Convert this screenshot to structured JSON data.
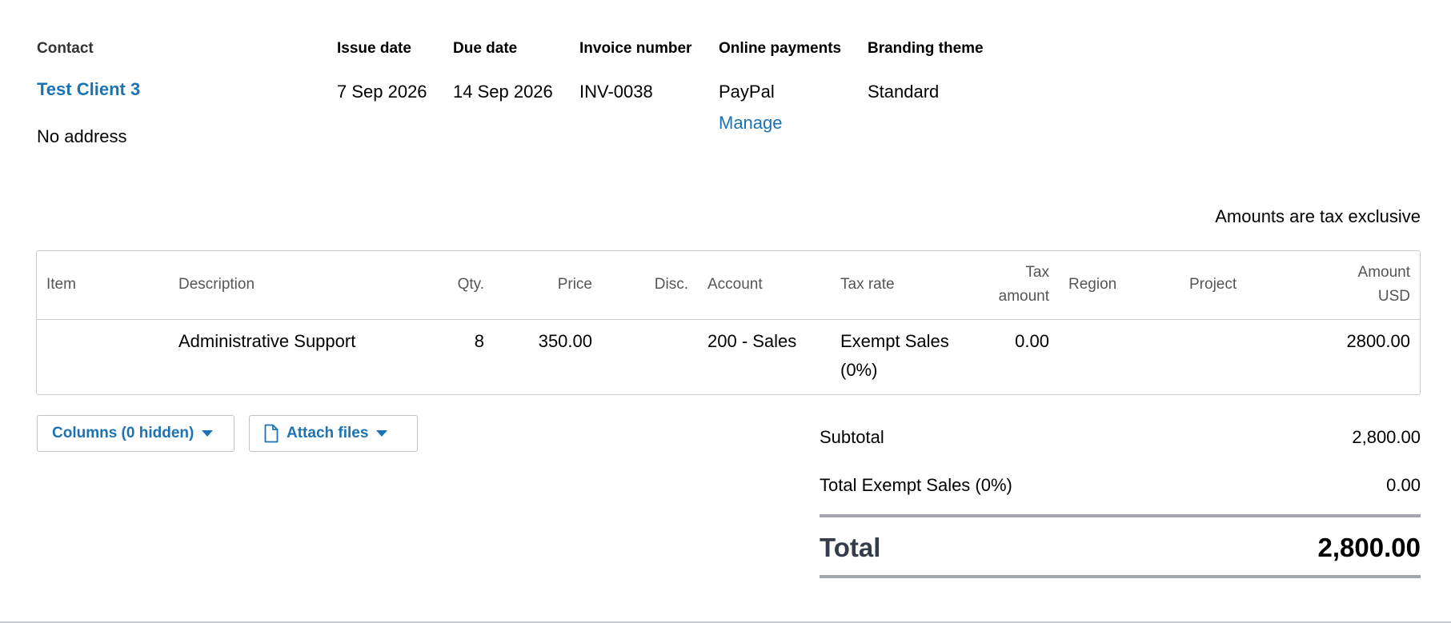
{
  "contact": {
    "label": "Contact",
    "name": "Test Client 3",
    "address": "No address"
  },
  "fields": [
    {
      "label": "Issue date",
      "value": "7 Sep 2026"
    },
    {
      "label": "Due date",
      "value": "14 Sep 2026"
    },
    {
      "label": "Invoice number",
      "value": "INV-0038"
    },
    {
      "label": "Online payments",
      "value": "PayPal",
      "link": "Manage"
    },
    {
      "label": "Branding theme",
      "value": "Standard"
    }
  ],
  "tax_note": "Amounts are tax exclusive",
  "table": {
    "columns": [
      "Item",
      "Description",
      "Qty.",
      "Price",
      "Disc.",
      "Account",
      "Tax rate",
      "Tax amount",
      "Region",
      "Project",
      "Amount USD"
    ],
    "rows": [
      {
        "description": "Administrative Support",
        "qty": "8",
        "price": "350.00",
        "account": "200 - Sales",
        "tax_rate": "Exempt Sales (0%)",
        "tax_amount": "0.00",
        "amount": "2800.00"
      }
    ]
  },
  "buttons": {
    "columns": "Columns (0 hidden)",
    "attach": "Attach files"
  },
  "totals": {
    "subtotal": {
      "label": "Subtotal",
      "value": "2,800.00"
    },
    "tax": {
      "label": "Total Exempt Sales (0%)",
      "value": "0.00"
    },
    "total": {
      "label": "Total",
      "value": "2,800.00"
    }
  }
}
